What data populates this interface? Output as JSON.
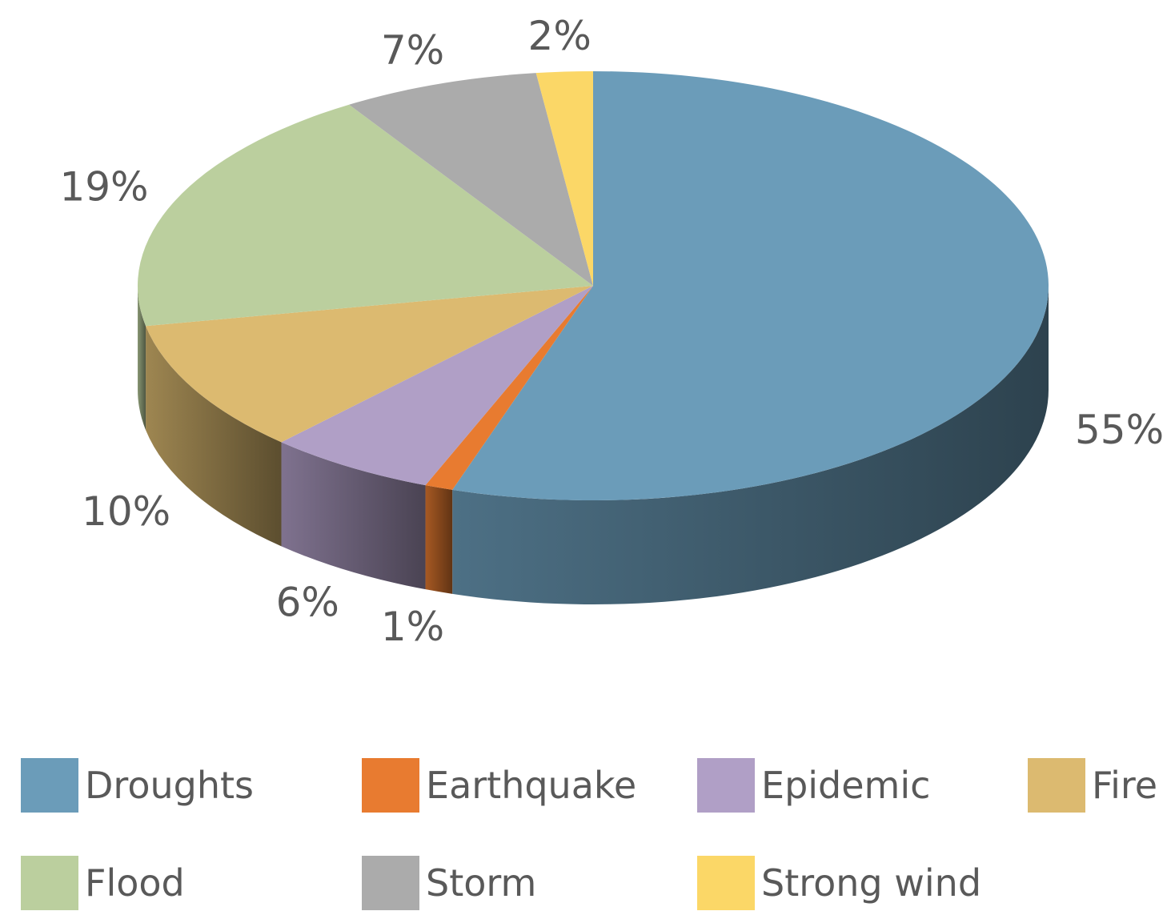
{
  "chart_data": {
    "type": "pie",
    "style": "3d",
    "title": "",
    "slices": [
      {
        "label": "Droughts",
        "value": 55,
        "display": "55%",
        "color": "#6b9cb9"
      },
      {
        "label": "Earthquake",
        "value": 1,
        "display": "1%",
        "color": "#e87b30"
      },
      {
        "label": "Epidemic",
        "value": 6,
        "display": "6%",
        "color": "#b09fc6"
      },
      {
        "label": "Fire",
        "value": 10,
        "display": "10%",
        "color": "#dcba70"
      },
      {
        "label": "Flood",
        "value": 19,
        "display": "19%",
        "color": "#bbcf9e"
      },
      {
        "label": "Storm",
        "value": 7,
        "display": "7%",
        "color": "#ababab"
      },
      {
        "label": "Strong wind",
        "value": 2,
        "display": "2%",
        "color": "#fbd767"
      }
    ],
    "legend_position": "bottom"
  }
}
